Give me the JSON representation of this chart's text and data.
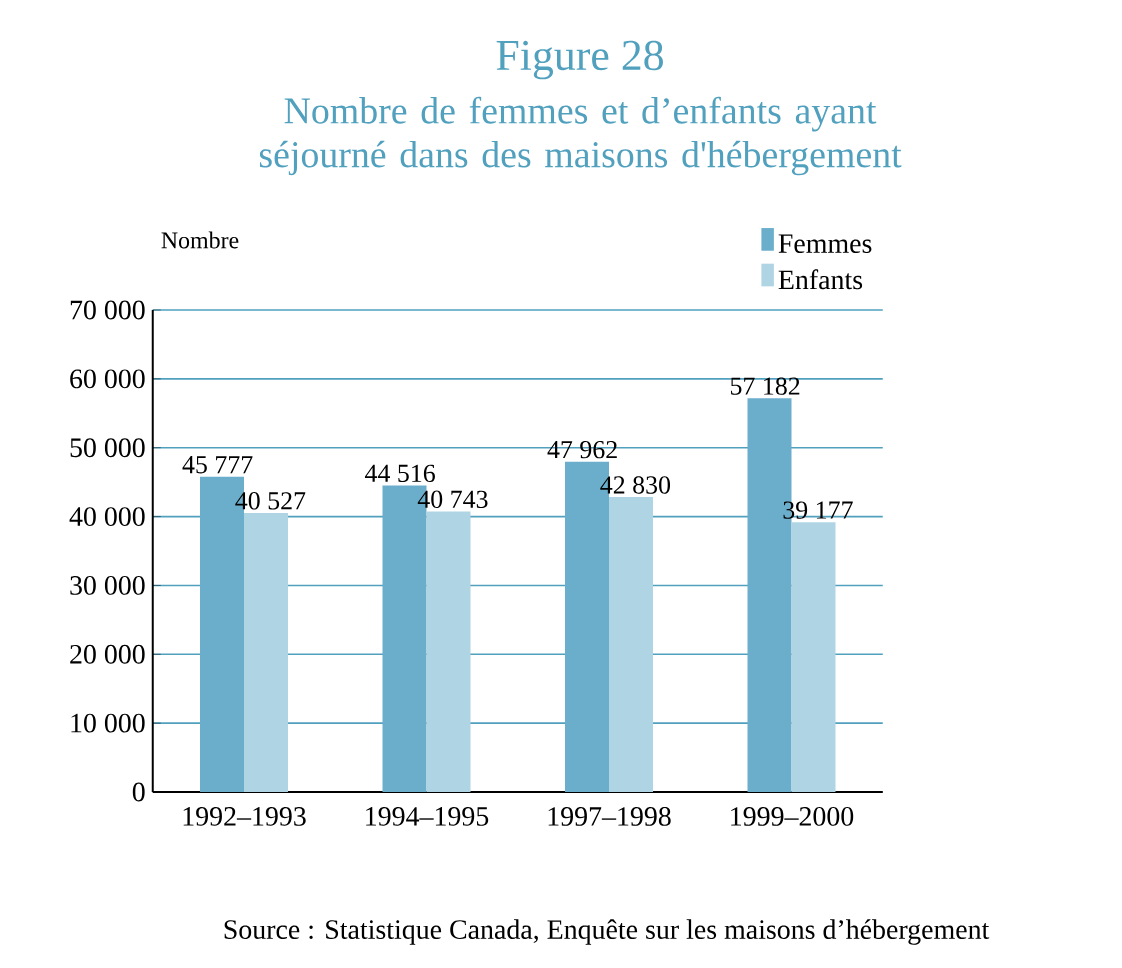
{
  "chart_data": {
    "type": "bar",
    "title": "Figure 28",
    "subtitle": "Nombre de femmes et d’enfants ayant séjourné dans des maisons d'hébergement",
    "ylabel": "Nombre",
    "categories": [
      "1992–1993",
      "1994–1995",
      "1997–1998",
      "1999–2000"
    ],
    "series": [
      {
        "name": "Femmes",
        "color": "#6aaecb",
        "values": [
          45777,
          44516,
          47962,
          57182
        ],
        "value_labels": [
          "45 777",
          "44 516",
          "47 962",
          "57 182"
        ]
      },
      {
        "name": "Enfants",
        "color": "#afd4e3",
        "values": [
          40527,
          40743,
          42830,
          39177
        ],
        "value_labels": [
          "40 527",
          "40 743",
          "42 830",
          "39 177"
        ]
      }
    ],
    "ylim": [
      0,
      70000
    ],
    "yticks": [
      {
        "value": 0,
        "label": "0"
      },
      {
        "value": 10000,
        "label": "10 000"
      },
      {
        "value": 20000,
        "label": "20 000"
      },
      {
        "value": 30000,
        "label": "30 000"
      },
      {
        "value": 40000,
        "label": "40 000"
      },
      {
        "value": 50000,
        "label": "50 000"
      },
      {
        "value": 60000,
        "label": "60 000"
      },
      {
        "value": 70000,
        "label": "70 000"
      }
    ],
    "grid": "y",
    "legend": "top right",
    "annotations": [
      "Source : Statistique Canada, Enquête sur les maisons d’hébergement"
    ]
  }
}
